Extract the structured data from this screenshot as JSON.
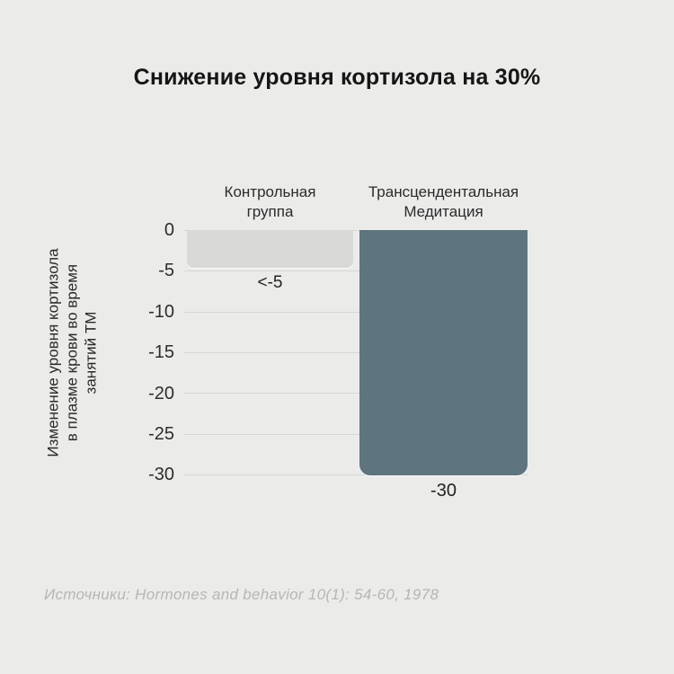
{
  "title": "Снижение уровня кортизола на 30%",
  "chart_data": {
    "type": "bar",
    "title": "Снижение уровня кортизола на 30%",
    "categories": [
      "Контрольная группа",
      "Трансцендентальная Медитация"
    ],
    "categories_display": [
      "Контрольная\nгруппа",
      "Трансцендентальная\nМедитация"
    ],
    "values": [
      -5,
      -30
    ],
    "value_labels": [
      "<-5",
      "-30"
    ],
    "bar_colors": [
      "#d9dad7",
      "#5e7580"
    ],
    "xlabel": "",
    "ylabel": "Изменение уровня кортизола в плазме крови во время занятий ТМ",
    "ylabel_display": "Изменение уровня кортизола\nв плазме крови во время\nзанятий ТМ",
    "ylim": [
      -30,
      0
    ],
    "yticks": [
      "0",
      "-5",
      "-10",
      "-15",
      "-20",
      "-25",
      "-30"
    ],
    "grid": "horizontal",
    "legend": "none"
  },
  "source": "Источники: Hormones and behavior 10(1): 54-60, 1978",
  "colors": {
    "background": "#ebebea",
    "bar_control": "#d9dad7",
    "bar_tm": "#5e7580",
    "gridline": "#d6d6d4",
    "text_primary": "#161616",
    "text_secondary": "#2b2b2b",
    "source_text": "#b6b6b4"
  }
}
